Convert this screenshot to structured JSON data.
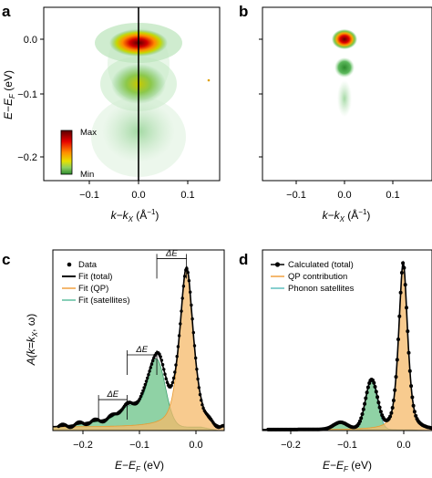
{
  "panels": {
    "a": {
      "label": "a"
    },
    "b": {
      "label": "b"
    },
    "c": {
      "label": "c"
    },
    "d": {
      "label": "d"
    }
  },
  "colorbar": {
    "max_label": "Max",
    "min_label": "Min",
    "colors": [
      "#8b0000",
      "#e60000",
      "#ff8c00",
      "#f0e000",
      "#7ec850",
      "#2e8b2e"
    ]
  },
  "top_axes": {
    "xlabel": "k−k",
    "xlabel_sub": "X",
    "xlabel_unit": " (Å",
    "xlabel_sup": "−1",
    "xlabel_end": ")",
    "ylabel": "E−E",
    "ylabel_sub": "F",
    "ylabel_unit": " (eV)",
    "xticks": [
      "−0.1",
      "0.0",
      "0.1"
    ],
    "yticks": [
      "0.0",
      "−0.1",
      "−0.2"
    ]
  },
  "bottom_axes": {
    "xlabel": "E−E",
    "xlabel_sub": "F",
    "xlabel_unit": " (eV)",
    "ylabel": "A(k=k",
    "ylabel_sub": "X",
    "ylabel_end": ", ω)",
    "xticks": [
      "−0.2",
      "−0.1",
      "0.0"
    ]
  },
  "legend_c": [
    "Data",
    "Fit (total)",
    "Fit (QP)",
    "Fit (satellites)"
  ],
  "legend_d": [
    "Calculated (total)",
    "QP contribution",
    "Phonon satellites"
  ],
  "annotations": {
    "delta_e": "ΔE"
  },
  "colors": {
    "qp": "#f5b96a",
    "satellite": "#5fbf7f",
    "data": "#000000",
    "map_peak": "#8b0000"
  },
  "chart_data": [
    {
      "panel": "a",
      "type": "heatmap",
      "description_units": "intensity map vs k (Å^-1) and energy (eV)",
      "xlim": [
        -0.17,
        0.17
      ],
      "ylim": [
        -0.24,
        0.04
      ],
      "features": [
        {
          "k": 0.0,
          "E": -0.005,
          "intensity": "max",
          "dk": 0.035,
          "dE": 0.014
        },
        {
          "k": 0.0,
          "E": -0.075,
          "intensity": "medium",
          "dk": 0.03,
          "dE": 0.03
        },
        {
          "k": 0.0,
          "E": -0.14,
          "intensity": "low",
          "dk": 0.04,
          "dE": 0.05
        }
      ],
      "vertical_line_k": 0.0
    },
    {
      "panel": "b",
      "type": "heatmap",
      "xlim": [
        -0.17,
        0.17
      ],
      "ylim": [
        -0.24,
        0.04
      ],
      "features": [
        {
          "k": 0.0,
          "E": -0.002,
          "intensity": "max",
          "dk": 0.015,
          "dE": 0.01
        },
        {
          "k": 0.0,
          "E": -0.06,
          "intensity": "medium",
          "dk": 0.012,
          "dE": 0.012
        },
        {
          "k": 0.0,
          "E": -0.11,
          "intensity": "low",
          "dk": 0.01,
          "dE": 0.02
        }
      ]
    },
    {
      "panel": "c",
      "type": "line",
      "xlim": [
        -0.25,
        0.05
      ],
      "ylim": [
        0,
        1.05
      ],
      "qp": {
        "center": -0.016,
        "width": 0.013,
        "amp": 0.93
      },
      "satellites": [
        {
          "center": -0.068,
          "width": 0.015,
          "amp": 0.38
        },
        {
          "center": -0.112,
          "width": 0.022,
          "amp": 0.12
        },
        {
          "center": -0.17,
          "width": 0.03,
          "amp": 0.03
        }
      ],
      "background": 0.02,
      "delta_e_brackets": [
        {
          "from": -0.17,
          "to": -0.12,
          "y": 0.18
        },
        {
          "from": -0.12,
          "to": -0.068,
          "y": 0.44
        },
        {
          "from": -0.068,
          "to": -0.016,
          "y": 1.0
        }
      ]
    },
    {
      "panel": "d",
      "type": "line",
      "xlim": [
        -0.25,
        0.05
      ],
      "ylim": [
        0,
        1.05
      ],
      "qp": {
        "center": -0.001,
        "width": 0.0085,
        "amp": 0.97
      },
      "satellites": [
        {
          "center": -0.057,
          "width": 0.0105,
          "amp": 0.28
        },
        {
          "center": -0.112,
          "width": 0.012,
          "amp": 0.04
        }
      ],
      "background": 0.005
    }
  ]
}
